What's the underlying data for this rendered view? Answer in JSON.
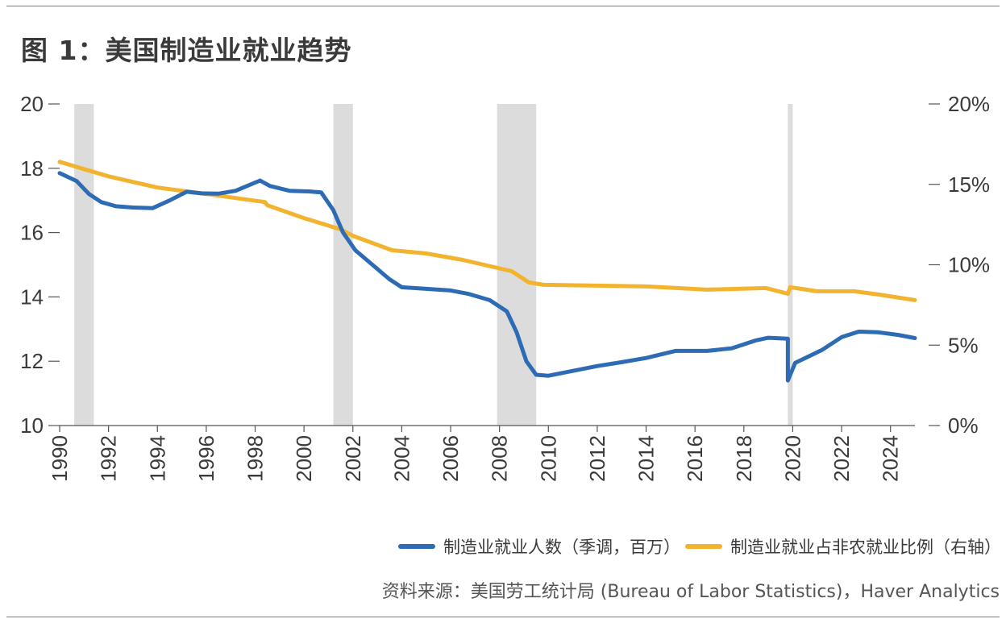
{
  "title": "图 1：美国制造业就业趋势",
  "source": "资料来源：美国劳工统计局 (Bureau of Labor Statistics)，Haver Analytics",
  "colors": {
    "employment": "#2e6bb5",
    "share": "#f2b32e",
    "recession": "#dcdcdc",
    "axis": "#555555"
  },
  "chart_data": {
    "type": "line",
    "x_ticks": [
      "1990",
      "1992",
      "1994",
      "1996",
      "1998",
      "2000",
      "2002",
      "2004",
      "2006",
      "2008",
      "2010",
      "2012",
      "2014",
      "2016",
      "2018",
      "2020",
      "2022",
      "2024"
    ],
    "xlim": [
      1990,
      2025
    ],
    "y_left": {
      "lim": [
        10,
        20
      ],
      "ticks": [
        "10",
        "12",
        "14",
        "16",
        "18",
        "20"
      ]
    },
    "y_right": {
      "lim": [
        0,
        20
      ],
      "ticks": [
        "0%",
        "5%",
        "10%",
        "15%",
        "20%"
      ]
    },
    "recessions": [
      [
        1990.6,
        1991.4
      ],
      [
        2001.2,
        2002.0
      ],
      [
        2007.9,
        2009.5
      ],
      [
        2019.8,
        2020.0
      ]
    ],
    "series": [
      {
        "name": "制造业就业人数（季调，百万）",
        "axis": "left",
        "points": [
          [
            1990,
            17.85
          ],
          [
            1990.7,
            17.6
          ],
          [
            1991.2,
            17.2
          ],
          [
            1991.7,
            16.95
          ],
          [
            1992.3,
            16.82
          ],
          [
            1993,
            16.78
          ],
          [
            1993.8,
            16.76
          ],
          [
            1994.5,
            17.0
          ],
          [
            1995.2,
            17.27
          ],
          [
            1995.8,
            17.22
          ],
          [
            1996.5,
            17.21
          ],
          [
            1997.2,
            17.3
          ],
          [
            1998.2,
            17.62
          ],
          [
            1998.6,
            17.45
          ],
          [
            1999.4,
            17.3
          ],
          [
            2000.2,
            17.28
          ],
          [
            2000.7,
            17.25
          ],
          [
            2001.2,
            16.7
          ],
          [
            2001.6,
            16.0
          ],
          [
            2002.1,
            15.45
          ],
          [
            2002.8,
            15.0
          ],
          [
            2003.5,
            14.55
          ],
          [
            2004,
            14.3
          ],
          [
            2005,
            14.25
          ],
          [
            2006,
            14.2
          ],
          [
            2006.7,
            14.1
          ],
          [
            2007.6,
            13.9
          ],
          [
            2008.3,
            13.55
          ],
          [
            2008.7,
            12.9
          ],
          [
            2009.1,
            12.0
          ],
          [
            2009.5,
            11.58
          ],
          [
            2010,
            11.55
          ],
          [
            2011,
            11.7
          ],
          [
            2012,
            11.85
          ],
          [
            2013,
            11.97
          ],
          [
            2014,
            12.1
          ],
          [
            2015.2,
            12.32
          ],
          [
            2016.5,
            12.32
          ],
          [
            2017.5,
            12.4
          ],
          [
            2018.5,
            12.65
          ],
          [
            2019,
            12.73
          ],
          [
            2019.8,
            12.7
          ],
          [
            2019.8,
            11.4
          ],
          [
            2020.1,
            11.95
          ],
          [
            2021.2,
            12.35
          ],
          [
            2022,
            12.75
          ],
          [
            2022.7,
            12.92
          ],
          [
            2023.5,
            12.9
          ],
          [
            2024.3,
            12.82
          ],
          [
            2025,
            12.72
          ]
        ]
      },
      {
        "name": "制造业就业占非农就业比例（右轴）",
        "axis": "right",
        "points": [
          [
            1990,
            16.4
          ],
          [
            1992,
            15.5
          ],
          [
            1994,
            14.8
          ],
          [
            1996,
            14.4
          ],
          [
            1998.4,
            13.9
          ],
          [
            1998.5,
            13.7
          ],
          [
            2000,
            12.9
          ],
          [
            2001.5,
            12.2
          ],
          [
            2002,
            11.8
          ],
          [
            2003.6,
            10.9
          ],
          [
            2005,
            10.7
          ],
          [
            2006.5,
            10.3
          ],
          [
            2008.5,
            9.6
          ],
          [
            2009.2,
            8.9
          ],
          [
            2009.8,
            8.75
          ],
          [
            2014,
            8.65
          ],
          [
            2016.5,
            8.45
          ],
          [
            2018.9,
            8.55
          ],
          [
            2019.8,
            8.2
          ],
          [
            2019.9,
            8.6
          ],
          [
            2021,
            8.35
          ],
          [
            2022.5,
            8.35
          ],
          [
            2023.5,
            8.15
          ],
          [
            2025,
            7.8
          ]
        ]
      }
    ]
  }
}
